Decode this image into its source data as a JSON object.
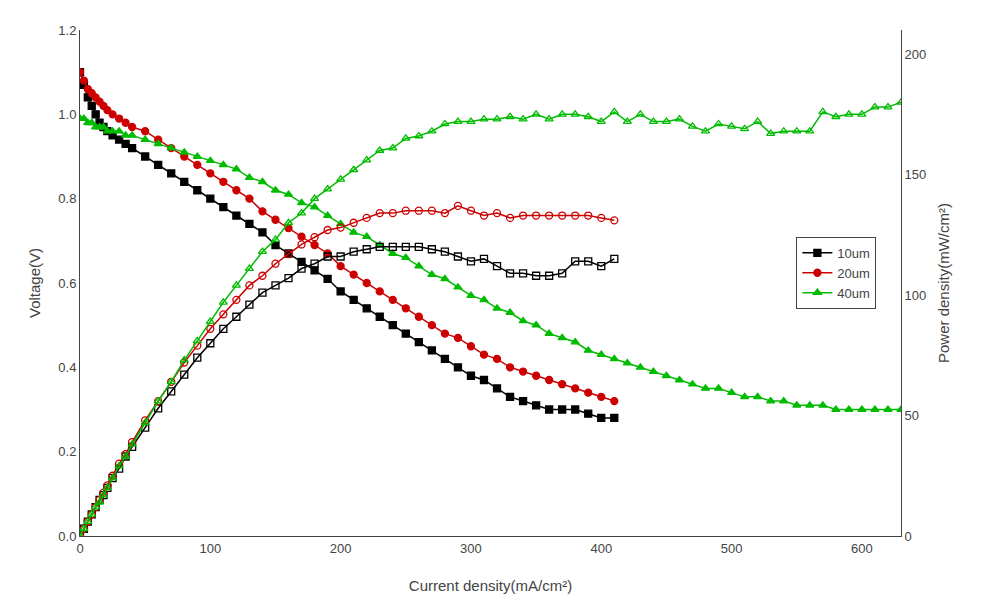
{
  "chart_data": {
    "type": "line",
    "xlabel": "Current density(mA/cm²)",
    "ylabel": "Voltage(V)",
    "y2label": "Power density(mW/cm²)",
    "xlim": [
      0,
      630
    ],
    "ylim": [
      0.0,
      1.2
    ],
    "y2lim": [
      0,
      210
    ],
    "xticks": [
      0,
      100,
      200,
      300,
      400,
      500,
      600
    ],
    "yticks": [
      {
        "value": 0,
        "label": "0.0"
      },
      0.2,
      0.4,
      0.6,
      0.8,
      {
        "value": 1,
        "label": "1.0"
      },
      1.2
    ],
    "y2ticks": [
      0,
      50,
      100,
      150,
      200
    ],
    "grid": false,
    "legend": "right",
    "series": [
      {
        "name": "10um",
        "color": "#000000",
        "marker": "square",
        "x": [
          0,
          3,
          6,
          9,
          12,
          15,
          18,
          21,
          25,
          30,
          35,
          40,
          50,
          60,
          70,
          80,
          90,
          100,
          110,
          120,
          130,
          140,
          150,
          160,
          170,
          180,
          190,
          200,
          210,
          220,
          230,
          240,
          250,
          260,
          270,
          280,
          290,
          300,
          310,
          320,
          330,
          340,
          350,
          360,
          370,
          380,
          390,
          400,
          410
        ],
        "values": [
          1.1,
          1.07,
          1.04,
          1.02,
          1.0,
          0.98,
          0.97,
          0.96,
          0.95,
          0.94,
          0.93,
          0.92,
          0.9,
          0.88,
          0.86,
          0.84,
          0.82,
          0.8,
          0.78,
          0.76,
          0.74,
          0.72,
          0.69,
          0.67,
          0.65,
          0.63,
          0.61,
          0.58,
          0.56,
          0.54,
          0.52,
          0.5,
          0.48,
          0.46,
          0.44,
          0.42,
          0.4,
          0.38,
          0.37,
          0.35,
          0.33,
          0.32,
          0.31,
          0.3,
          0.3,
          0.3,
          0.29,
          0.28,
          0.28
        ]
      },
      {
        "name": "20um",
        "color": "#cc0000",
        "marker": "circle",
        "x": [
          0,
          3,
          6,
          9,
          12,
          15,
          18,
          21,
          25,
          30,
          35,
          40,
          50,
          60,
          70,
          80,
          90,
          100,
          110,
          120,
          130,
          140,
          150,
          160,
          170,
          180,
          190,
          200,
          210,
          220,
          230,
          240,
          250,
          260,
          270,
          280,
          290,
          300,
          310,
          320,
          330,
          340,
          350,
          360,
          370,
          380,
          390,
          400,
          410
        ],
        "values": [
          1.1,
          1.08,
          1.06,
          1.05,
          1.04,
          1.03,
          1.02,
          1.01,
          1.0,
          0.99,
          0.98,
          0.97,
          0.96,
          0.94,
          0.92,
          0.9,
          0.88,
          0.86,
          0.84,
          0.82,
          0.8,
          0.77,
          0.75,
          0.73,
          0.71,
          0.69,
          0.67,
          0.64,
          0.62,
          0.6,
          0.58,
          0.56,
          0.54,
          0.52,
          0.5,
          0.48,
          0.47,
          0.45,
          0.43,
          0.42,
          0.4,
          0.39,
          0.38,
          0.37,
          0.36,
          0.35,
          0.34,
          0.33,
          0.32
        ]
      },
      {
        "name": "40um",
        "color": "#00bb00",
        "marker": "triangle-up",
        "x": [
          0,
          3,
          6,
          9,
          12,
          15,
          18,
          21,
          25,
          30,
          35,
          40,
          50,
          60,
          70,
          80,
          90,
          100,
          110,
          120,
          130,
          140,
          150,
          160,
          170,
          180,
          190,
          200,
          210,
          220,
          230,
          240,
          250,
          260,
          270,
          280,
          290,
          300,
          310,
          320,
          330,
          340,
          350,
          360,
          370,
          380,
          390,
          400,
          410,
          420,
          430,
          440,
          450,
          460,
          470,
          480,
          490,
          500,
          510,
          520,
          530,
          540,
          550,
          560,
          570,
          580,
          590,
          600,
          610,
          620,
          630
        ],
        "values": [
          0.99,
          0.99,
          0.98,
          0.98,
          0.97,
          0.97,
          0.97,
          0.96,
          0.96,
          0.96,
          0.95,
          0.95,
          0.94,
          0.93,
          0.92,
          0.91,
          0.9,
          0.89,
          0.88,
          0.87,
          0.85,
          0.84,
          0.82,
          0.81,
          0.79,
          0.78,
          0.76,
          0.74,
          0.72,
          0.71,
          0.69,
          0.67,
          0.66,
          0.64,
          0.62,
          0.61,
          0.59,
          0.57,
          0.56,
          0.54,
          0.53,
          0.51,
          0.5,
          0.48,
          0.47,
          0.46,
          0.44,
          0.43,
          0.42,
          0.41,
          0.4,
          0.39,
          0.38,
          0.37,
          0.36,
          0.35,
          0.35,
          0.34,
          0.33,
          0.33,
          0.32,
          0.32,
          0.31,
          0.31,
          0.31,
          0.3,
          0.3,
          0.3,
          0.3,
          0.3,
          0.3
        ]
      },
      {
        "color": "#000000",
        "marker": "square-open",
        "axis": "y2",
        "x": [
          0,
          3,
          6,
          9,
          12,
          15,
          18,
          21,
          25,
          30,
          35,
          40,
          50,
          60,
          70,
          80,
          90,
          100,
          110,
          120,
          130,
          140,
          150,
          160,
          170,
          180,
          190,
          200,
          210,
          220,
          230,
          240,
          250,
          260,
          270,
          280,
          290,
          300,
          310,
          320,
          330,
          340,
          350,
          360,
          370,
          380,
          390,
          400,
          410
        ],
        "values": [
          0,
          3,
          6,
          9,
          12,
          15,
          17,
          20,
          24,
          28,
          33,
          37,
          45,
          53,
          60,
          67,
          74,
          80,
          86,
          91,
          96,
          101,
          104,
          107,
          111,
          113,
          116,
          116,
          118,
          119,
          120,
          120,
          120,
          120,
          119,
          118,
          116,
          114,
          115,
          112,
          109,
          109,
          108,
          108,
          109,
          114,
          114,
          112,
          115
        ]
      },
      {
        "color": "#cc0000",
        "marker": "circle-open",
        "axis": "y2",
        "x": [
          0,
          3,
          6,
          9,
          12,
          15,
          18,
          21,
          25,
          30,
          35,
          40,
          50,
          60,
          70,
          80,
          90,
          100,
          110,
          120,
          130,
          140,
          150,
          160,
          170,
          180,
          190,
          200,
          210,
          220,
          230,
          240,
          250,
          260,
          270,
          280,
          290,
          300,
          310,
          320,
          330,
          340,
          350,
          360,
          370,
          380,
          390,
          400,
          410
        ],
        "values": [
          0,
          3,
          6,
          9,
          12,
          15,
          18,
          21,
          25,
          30,
          34,
          39,
          48,
          56,
          64,
          72,
          79,
          86,
          92,
          98,
          104,
          108,
          113,
          117,
          121,
          124,
          127,
          128,
          130,
          132,
          134,
          134,
          135,
          135,
          135,
          134,
          137,
          135,
          133,
          134,
          132,
          133,
          133,
          133,
          133,
          133,
          133,
          132,
          131
        ]
      },
      {
        "color": "#00bb00",
        "marker": "triangle-up-open",
        "axis": "y2",
        "x": [
          0,
          3,
          6,
          9,
          12,
          15,
          18,
          21,
          25,
          30,
          35,
          40,
          50,
          60,
          70,
          80,
          90,
          100,
          110,
          120,
          130,
          140,
          150,
          160,
          170,
          180,
          190,
          200,
          210,
          220,
          230,
          240,
          250,
          260,
          270,
          280,
          290,
          300,
          310,
          320,
          330,
          340,
          350,
          360,
          370,
          380,
          390,
          400,
          410,
          420,
          430,
          440,
          450,
          460,
          470,
          480,
          490,
          500,
          510,
          520,
          530,
          540,
          550,
          560,
          570,
          580,
          590,
          600,
          610,
          620,
          630
        ],
        "values": [
          0,
          3,
          6,
          9,
          12,
          14,
          17,
          20,
          24,
          29,
          33,
          38,
          47,
          56,
          64,
          73,
          81,
          89,
          97,
          104,
          111,
          118,
          123,
          130,
          134,
          140,
          144,
          148,
          152,
          156,
          160,
          161,
          165,
          166,
          168,
          171,
          172,
          172,
          173,
          173,
          174,
          173,
          175,
          173,
          175,
          175,
          174,
          172,
          176,
          172,
          175,
          172,
          172,
          173,
          170,
          168,
          171,
          170,
          169,
          172,
          167,
          168,
          168,
          168,
          176,
          174,
          175,
          175,
          178,
          178,
          180
        ]
      }
    ]
  }
}
